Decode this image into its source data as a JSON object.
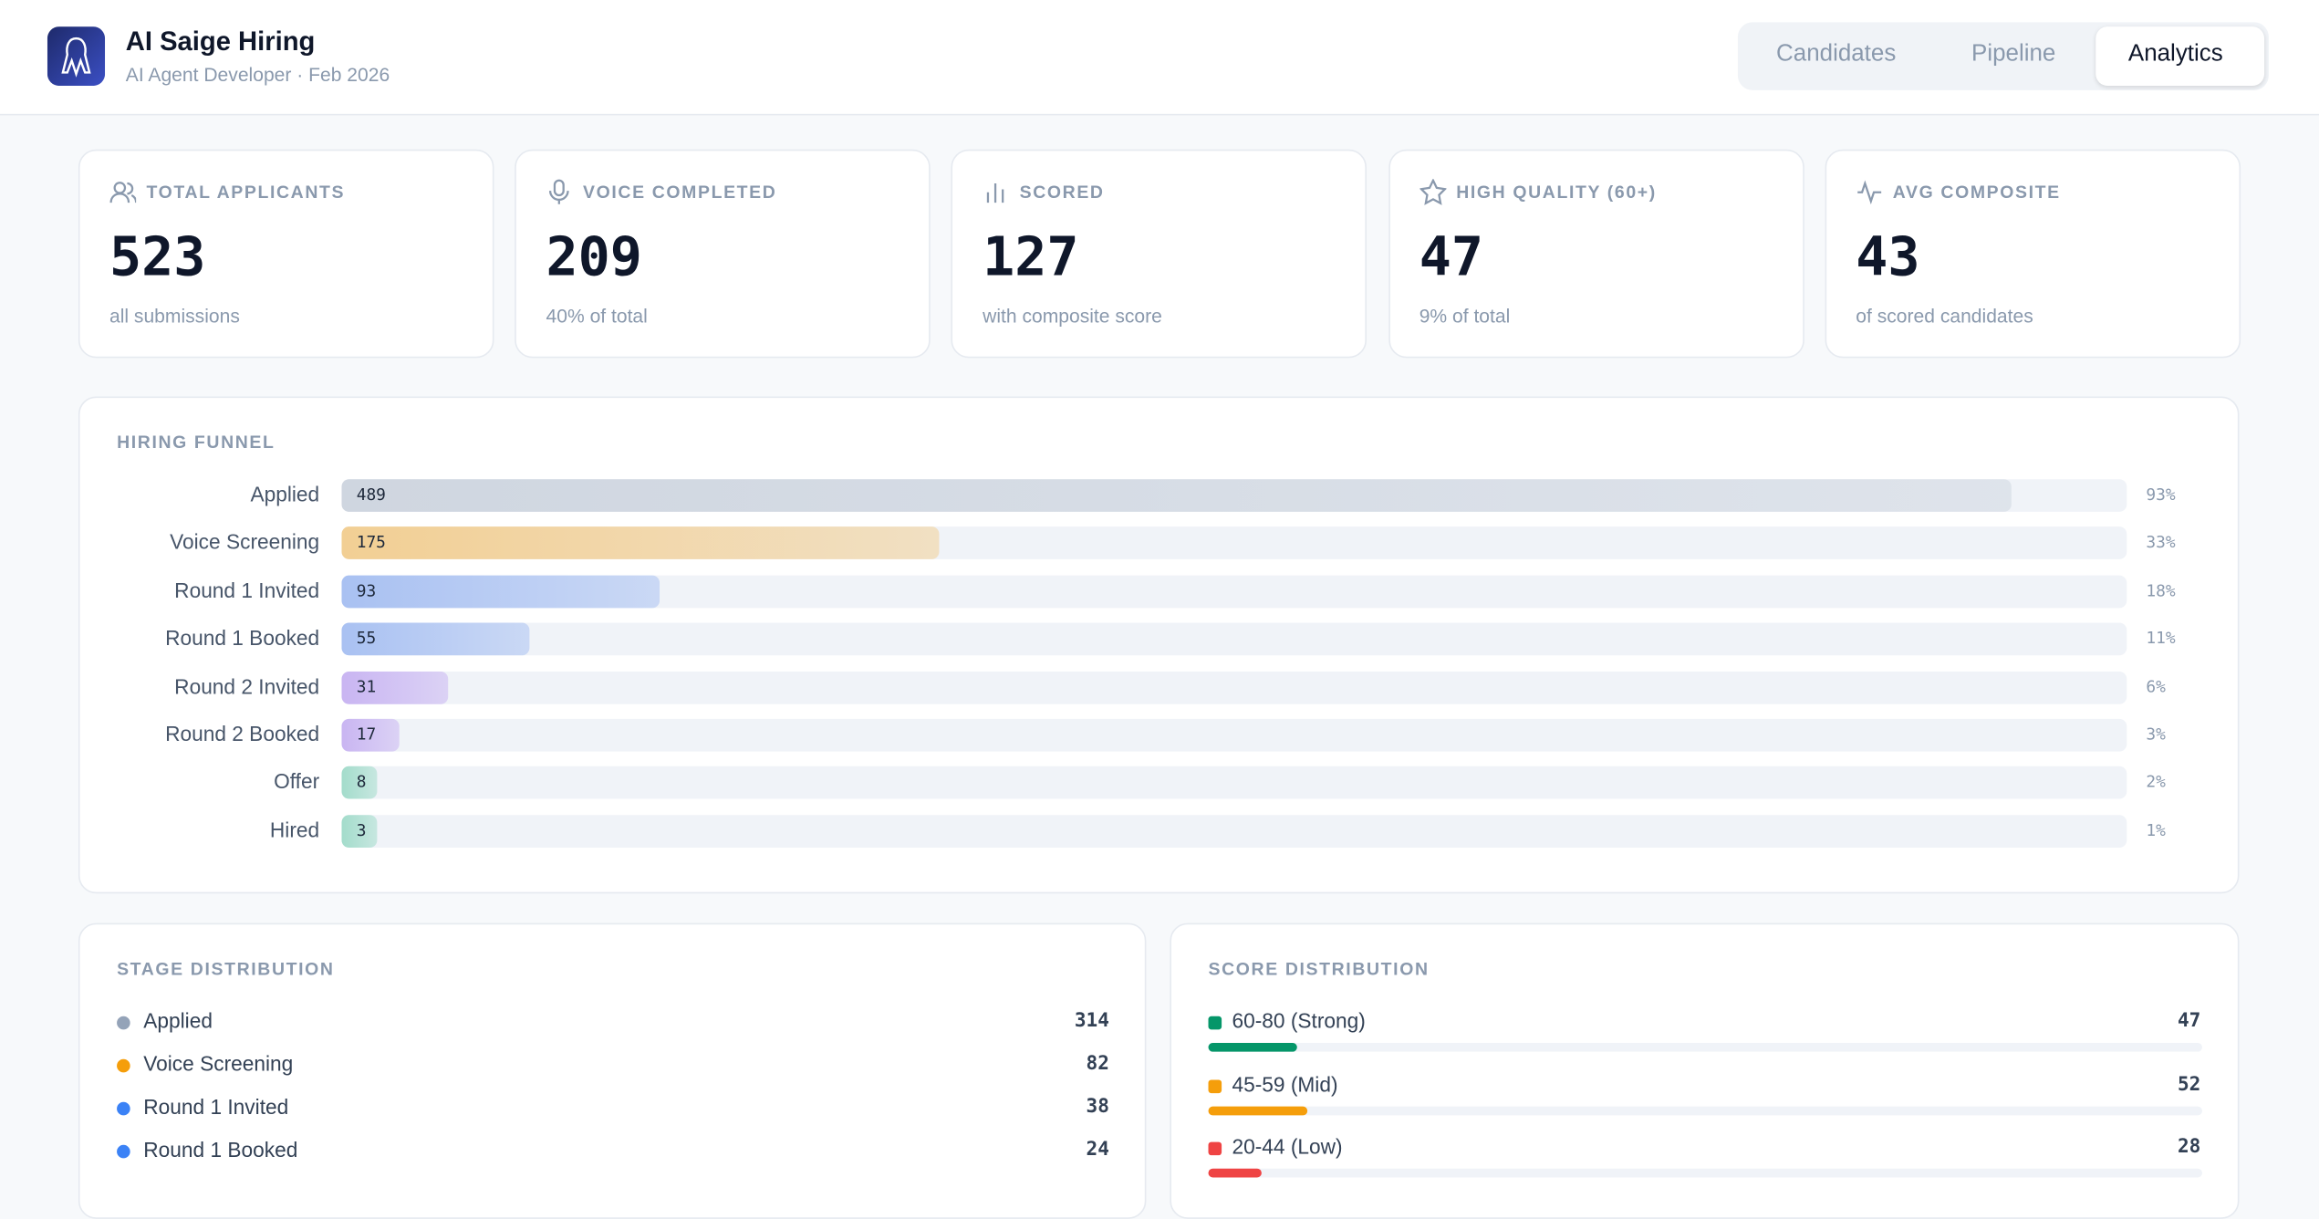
{
  "header": {
    "title": "AI Saige Hiring",
    "subtitle": "AI Agent Developer · Feb 2026"
  },
  "tabs": [
    "Candidates",
    "Pipeline",
    "Analytics"
  ],
  "active_tab": 2,
  "stats": [
    {
      "label": "TOTAL APPLICANTS",
      "value": 523,
      "note": "all submissions"
    },
    {
      "label": "VOICE COMPLETED",
      "value": 209,
      "note": "40% of total"
    },
    {
      "label": "SCORED",
      "value": 127,
      "note": "with composite score"
    },
    {
      "label": "HIGH QUALITY (60+)",
      "value": 47,
      "note": "9% of total"
    },
    {
      "label": "AVG COMPOSITE",
      "value": 43,
      "note": "of scored candidates"
    }
  ],
  "funnel": {
    "title": "HIRING FUNNEL",
    "rows": [
      {
        "label": "Applied",
        "value": 489,
        "percent": "93%",
        "color": "#cfd6e0"
      },
      {
        "label": "Voice Screening",
        "value": 175,
        "percent": "33%",
        "color": "#f2cf94"
      },
      {
        "label": "Round 1 Invited",
        "value": 93,
        "percent": "18%",
        "color": "#a9c1f2"
      },
      {
        "label": "Round 1 Booked",
        "value": 55,
        "percent": "11%",
        "color": "#a9c1f2"
      },
      {
        "label": "Round 2 Invited",
        "value": 31,
        "percent": "6%",
        "color": "#c9b5f2"
      },
      {
        "label": "Round 2 Booked",
        "value": 17,
        "percent": "3%",
        "color": "#c9b5f2"
      },
      {
        "label": "Offer",
        "value": 8,
        "percent": "2%",
        "color": "#a3dccb"
      },
      {
        "label": "Hired",
        "value": 3,
        "percent": "1%",
        "color": "#a3dccb"
      }
    ]
  },
  "stage_distribution": {
    "title": "STAGE DISTRIBUTION",
    "rows": [
      {
        "label": "Applied",
        "value": 314,
        "color": "#94a3b8"
      },
      {
        "label": "Voice Screening",
        "value": 82,
        "color": "#f59e0b"
      },
      {
        "label": "Round 1 Invited",
        "value": 38,
        "color": "#3b82f6"
      },
      {
        "label": "Round 1 Booked",
        "value": 24,
        "color": "#3b82f6"
      }
    ]
  },
  "score_distribution": {
    "title": "SCORE DISTRIBUTION",
    "rows": [
      {
        "label": "60-80 (Strong)",
        "value": 47,
        "color": "#059669"
      },
      {
        "label": "45-59 (Mid)",
        "value": 52,
        "color": "#f59e0b"
      },
      {
        "label": "20-44 (Low)",
        "value": 28,
        "color": "#ef4444"
      }
    ]
  }
}
